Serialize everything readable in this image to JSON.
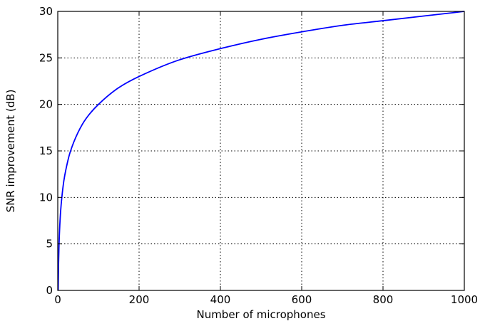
{
  "chart_data": {
    "type": "line",
    "title": "",
    "xlabel": "Number of microphones",
    "ylabel": "SNR improvement (dB)",
    "xlim": [
      0,
      1000
    ],
    "ylim": [
      0,
      30
    ],
    "xticks": [
      0,
      200,
      400,
      600,
      800,
      1000
    ],
    "yticks": [
      0,
      5,
      10,
      15,
      20,
      25,
      30
    ],
    "x_tick_labels": [
      "0",
      "200",
      "400",
      "600",
      "800",
      "1000"
    ],
    "y_tick_labels": [
      "0",
      "5",
      "10",
      "15",
      "20",
      "25",
      "30"
    ],
    "grid": true,
    "legend": "none",
    "series": [
      {
        "color": "#0000ff",
        "x": [
          1,
          2,
          3,
          5,
          7,
          10,
          15,
          20,
          30,
          50,
          70,
          100,
          150,
          200,
          300,
          400,
          500,
          600,
          700,
          800,
          900,
          1000
        ],
        "y": [
          0,
          3,
          4.8,
          7,
          8.5,
          10,
          11.8,
          13,
          14.8,
          17,
          18.5,
          20,
          21.8,
          23,
          24.8,
          26,
          27,
          27.8,
          28.5,
          29,
          29.5,
          30
        ]
      }
    ]
  }
}
